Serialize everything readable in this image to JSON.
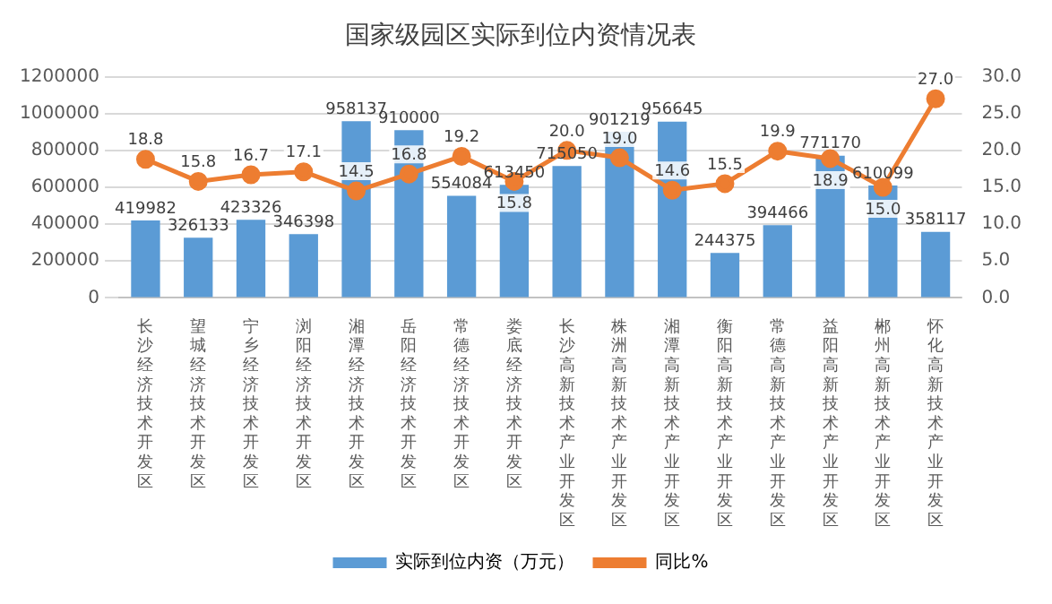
{
  "chart_data": {
    "type": "bar",
    "title": "国家级园区实际到位内资情况表",
    "categories": [
      "长沙经济技术开发区",
      "望城经济技术开发区",
      "宁乡经济技术开发区",
      "浏阳经济技术开发区",
      "湘潭经济技术开发区",
      "岳阳经济技术开发区",
      "常德经济技术开发区",
      "娄底经济技术开发区",
      "长沙高新技术产业开发区",
      "株洲高新技术产业开发区",
      "湘潭高新技术产业开发区",
      "衡阳高新技术产业开发区",
      "常德高新技术产业开发区",
      "益阳高新技术产业开发区",
      "郴州高新技术产业开发区",
      "怀化高新技术产业开发区"
    ],
    "series": [
      {
        "name": "实际到位内资（万元）",
        "color": "#5b9bd5",
        "values": [
          419982,
          326133,
          423326,
          346398,
          958137,
          910000,
          554084,
          613450,
          715050,
          901219,
          956645,
          244375,
          394466,
          771170,
          610099,
          358117
        ]
      },
      {
        "name": "同比%",
        "type": "line",
        "axis": "y2",
        "color": "#ed7d31",
        "marker": "circle",
        "values": [
          18.8,
          15.8,
          16.7,
          17.1,
          14.5,
          16.8,
          19.2,
          15.8,
          20.0,
          19.0,
          14.6,
          15.5,
          19.9,
          18.9,
          15.0,
          27.0
        ],
        "value_labels": [
          "18.8",
          "15.8",
          "16.7",
          "17.1",
          "14.5",
          "16.8",
          "19.2",
          "15.8",
          "20.0",
          "19.0",
          "14.6",
          "15.5",
          "19.9",
          "18.9",
          "15.0",
          "27.0"
        ]
      }
    ],
    "ylim": [
      0,
      1200000
    ],
    "yticks": [
      0,
      200000,
      400000,
      600000,
      800000,
      1000000,
      1200000
    ],
    "y2lim": [
      0,
      30
    ],
    "y2ticks": [
      {
        "value": 0,
        "label": "0.0"
      },
      {
        "value": 5,
        "label": "5.0"
      },
      {
        "value": 10,
        "label": "10.0"
      },
      {
        "value": 15,
        "label": "15.0"
      },
      {
        "value": 20,
        "label": "20.0"
      },
      {
        "value": 25,
        "label": "25.0"
      },
      {
        "value": 30,
        "label": "30.0"
      }
    ],
    "grid": "y",
    "legend": "bottom",
    "data_labels": true
  }
}
